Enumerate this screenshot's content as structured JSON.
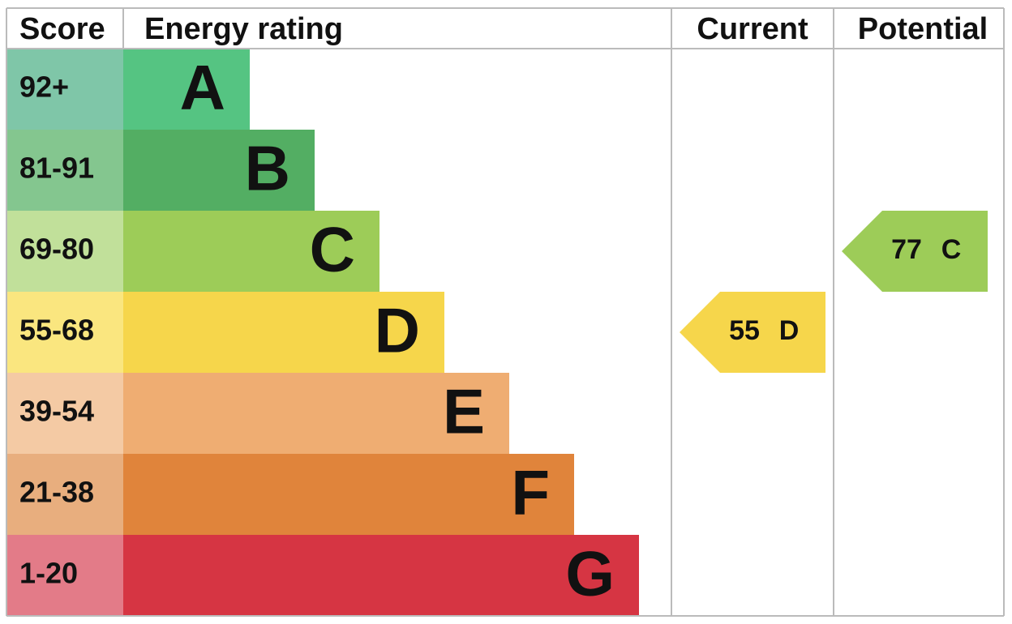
{
  "header": {
    "score": "Score",
    "rating": "Energy rating",
    "current": "Current",
    "potential": "Potential"
  },
  "bands": [
    {
      "score": "92+",
      "rating": "A",
      "color": "#55c482",
      "score_color": "#7fc6a8"
    },
    {
      "score": "81-91",
      "rating": "B",
      "color": "#53ae63",
      "score_color": "#84c68f"
    },
    {
      "score": "69-80",
      "rating": "C",
      "color": "#9dcc58",
      "score_color": "#c1e09a"
    },
    {
      "score": "55-68",
      "rating": "D",
      "color": "#f6d64b",
      "score_color": "#fae67f"
    },
    {
      "score": "39-54",
      "rating": "E",
      "color": "#efad72",
      "score_color": "#f4caa4"
    },
    {
      "score": "21-38",
      "rating": "F",
      "color": "#e0843b",
      "score_color": "#e8ae7e"
    },
    {
      "score": "1-20",
      "rating": "G",
      "color": "#d63543",
      "score_color": "#e37b88"
    }
  ],
  "current": {
    "score": 55,
    "rating": "D"
  },
  "potential": {
    "score": 77,
    "rating": "C"
  }
}
